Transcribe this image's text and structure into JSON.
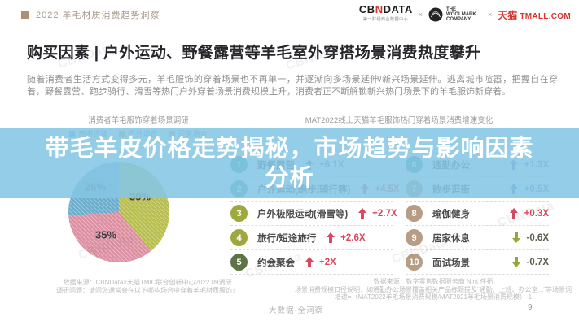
{
  "header": {
    "report_title": "2022 羊毛材质消费趋势洞察",
    "logo_cbn_prefix": "CB",
    "logo_cbn_accent": "N",
    "logo_cbn_suffix": "DATA",
    "logo_cbn_sub": "第一财经商业数据中心",
    "logo_sep1": "×",
    "logo_woolmark": "THE WOOLMARK COMPANY",
    "logo_sep2": "×",
    "logo_tmall_cn": "天猫",
    "logo_tmall_en": "TMALL.COM",
    "square_color": "#b08d75"
  },
  "title": "购买因素 | 户外运动、野餐露营等羊毛室外穿搭场景消费热度攀升",
  "intro": "随着消费者生活方式变得多元，羊毛服饰的穿着场景也不再单一，并逐渐向多场景延伸/新兴场景延伸。逃离城市喧嚣，把握自在穿着，野餐露营、跑步骑行、滑雪等热门户外穿着场景消费规模上升，消费者正不断解锁新兴热门场景下的羊毛服饰新穿着。",
  "overlay": {
    "line1": "带毛羊皮价格走势揭秘，市场趋势与影响因素",
    "line2": "分析",
    "bg": "#85c6e4",
    "text_color": "#ffffff"
  },
  "left_chart": {
    "title": "消费者羊毛服饰穿着场景调研",
    "footnote1": "数据来源：CBNData×天猫TMIC联合创新中心2022.09调研",
    "footnote2": "调研问题：请问您通常会在以下哪些场合中穿着羊毛材质服饰？"
  },
  "right_chart": {
    "title": "MAT2022线上天猫羊毛服饰热门穿着场景消费增速变化",
    "footnote1": "数据来源：数字零售数据服务商 Nint 任拓",
    "footnote2": "场景消费规模口径说明：如通勤办公场景覆盖相关产品标题提及“通勤、上班、办公室...”等场景词",
    "footnote3": "增速=（MAT2022羊毛场景消费规模/MAT2021羊毛场景消费规模）-1"
  },
  "footer": {
    "slogan": "大数据·全洞察",
    "page_number": "9"
  },
  "watermark": "CBNData",
  "chart_data": [
    {
      "type": "pie",
      "title": "消费者羊毛服饰穿着场景调研",
      "slices": [
        {
          "label": "户外场合",
          "value": 39,
          "label_text": "39%",
          "color": "#b7bd4f"
        },
        {
          "label": "居家场合",
          "value": 35,
          "label_text": "35%",
          "color": "#db91a2"
        },
        {
          "label": "商务正装",
          "value": 26,
          "label_text": "26%",
          "color": "#6cadcc"
        }
      ],
      "legend": [
        {
          "label": "商务正装",
          "color": "#6cadcc"
        },
        {
          "label": "户外场合",
          "color": "#b7bd4f"
        },
        {
          "label": "居家场合",
          "color": "#db91a2"
        }
      ]
    },
    {
      "type": "table",
      "title": "MAT2022线上天猫羊毛服饰热门穿着场景消费增速变化",
      "items": [
        {
          "rank": "1",
          "label": "野餐露营",
          "value": "+6.1X",
          "growth": 6.1,
          "direction": "up",
          "circle_color": "#2f998c",
          "arrow_color": "#4f7ec0",
          "value_color": "#5f7ea8"
        },
        {
          "rank": "2",
          "label": "户外运动(跑步/骑行等)",
          "value": "+4.5X",
          "growth": 4.5,
          "direction": "up",
          "circle_color": "#2f998c",
          "arrow_color": "#d9485e",
          "value_color": "#d9485e"
        },
        {
          "rank": "3",
          "label": "户外极限运动(滑雪等)",
          "value": "+2.7X",
          "growth": 2.7,
          "direction": "up",
          "circle_color": "#9fa83c",
          "arrow_color": "#d9485e",
          "value_color": "#d9485e"
        },
        {
          "rank": "4",
          "label": "旅行/短途旅行",
          "value": "+2.6X",
          "growth": 2.6,
          "direction": "up",
          "circle_color": "#9fa83c",
          "arrow_color": "#d9485e",
          "value_color": "#d9485e"
        },
        {
          "rank": "5",
          "label": "约会聚会",
          "value": "+2X",
          "growth": 2.0,
          "direction": "up",
          "circle_color": "#5e7247",
          "arrow_color": "#d9485e",
          "value_color": "#d9485e"
        },
        {
          "rank": "6",
          "label": "通勤办公",
          "value": "+1.3X",
          "growth": 1.3,
          "direction": "up",
          "circle_color": "#2f998c",
          "arrow_color": "#4f7ec0",
          "value_color": "#5f7ea8"
        },
        {
          "rank": "7",
          "label": "散步逛街",
          "value": "+0.5X",
          "growth": 0.5,
          "direction": "up",
          "circle_color": "#b79d85",
          "arrow_color": "#4f7ec0",
          "value_color": "#5f7ea8"
        },
        {
          "rank": "8",
          "label": "瑜伽健身",
          "value": "+0.3X",
          "growth": 0.3,
          "direction": "up",
          "circle_color": "#b79d85",
          "arrow_color": "#d9485e",
          "value_color": "#d9485e"
        },
        {
          "rank": "9",
          "label": "居家休息",
          "value": "-0.6X",
          "growth": -0.6,
          "direction": "down",
          "circle_color": "#b79d85",
          "arrow_color": "#96a53c",
          "value_color": "#5d5d4e"
        },
        {
          "rank": "10",
          "label": "面试场景",
          "value": "-0.7X",
          "growth": -0.7,
          "direction": "down",
          "circle_color": "#b79d85",
          "arrow_color": "#96a53c",
          "value_color": "#5d5d4e"
        }
      ]
    }
  ]
}
